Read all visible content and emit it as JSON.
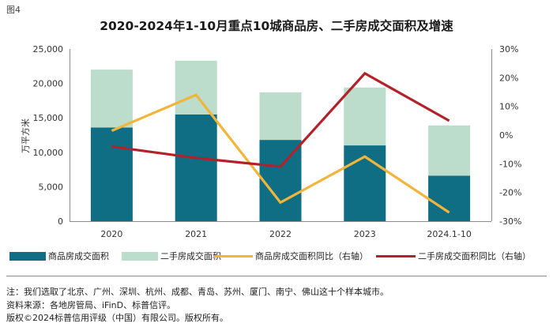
{
  "figure_label": "图4",
  "chart_data": {
    "type": "bar+line",
    "title": "2020-2024年1-10月重点10城商品房、二手房成交面积及增速",
    "ylabel": "万平方米",
    "categories": [
      "2020",
      "2021",
      "2022",
      "2023",
      "2024.1-10"
    ],
    "ylim": [
      0,
      25000
    ],
    "yticks": [
      0,
      5000,
      10000,
      15000,
      20000,
      25000
    ],
    "ytick_labels": [
      "0",
      "5,000",
      "10,000",
      "15,000",
      "20,000",
      "25,000"
    ],
    "y2lim": [
      -30,
      30
    ],
    "y2ticks": [
      -30,
      -20,
      -10,
      0,
      10,
      20,
      30
    ],
    "y2tick_labels": [
      "-30%",
      "-20%",
      "-10%",
      "0%",
      "10%",
      "20%",
      "30%"
    ],
    "stacked": true,
    "series": [
      {
        "name": "商品房成交面积",
        "type": "bar",
        "axis": "left",
        "color": "#0f6e84",
        "values": [
          13600,
          15500,
          11800,
          11000,
          6600
        ]
      },
      {
        "name": "二手房成交面积",
        "type": "bar",
        "axis": "left",
        "color": "#bcdccc",
        "values": [
          8400,
          7800,
          6900,
          8400,
          7300
        ]
      },
      {
        "name": "商品房成交面积同比（右轴）",
        "type": "line",
        "axis": "right",
        "color": "#f2b53c",
        "values": [
          1.5,
          14,
          -23.5,
          -7.5,
          -27
        ]
      },
      {
        "name": "二手房成交面积同比（右轴）",
        "type": "line",
        "axis": "right",
        "color": "#b0232a",
        "values": [
          -4,
          -8,
          -11,
          21.5,
          5
        ]
      }
    ]
  },
  "notes": [
    "注：我们选取了北京、广州、深圳、杭州、成都、青岛、苏州、厦门、南宁、佛山这十个样本城市。",
    "资料来源：各地房管局、iFinD、标普信评。",
    "版权©2024标普信用评级（中国）有限公司。版权所有。"
  ]
}
